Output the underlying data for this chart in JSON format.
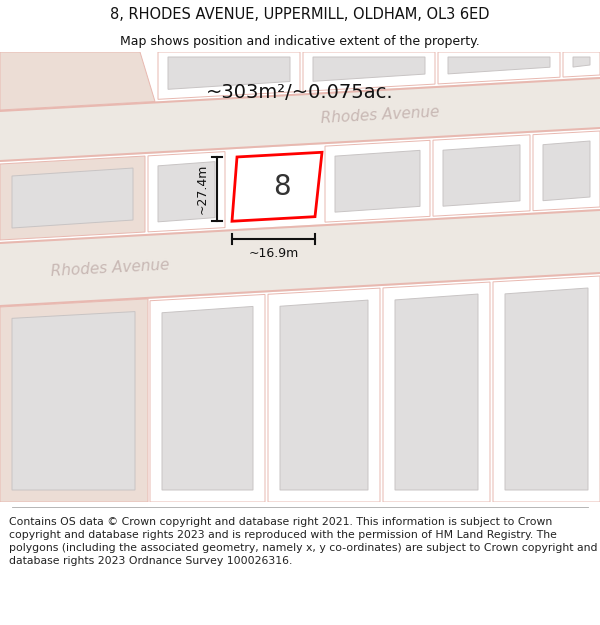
{
  "title_line1": "8, RHODES AVENUE, UPPERMILL, OLDHAM, OL3 6ED",
  "title_line2": "Map shows position and indicative extent of the property.",
  "footer_text": "Contains OS data © Crown copyright and database right 2021. This information is subject to Crown copyright and database rights 2023 and is reproduced with the permission of HM Land Registry. The polygons (including the associated geometry, namely x, y co-ordinates) are subject to Crown copyright and database rights 2023 Ordnance Survey 100026316.",
  "area_text": "~303m²/~0.075ac.",
  "label_text": "8",
  "dim_width": "~16.9m",
  "dim_height": "~27.4m",
  "rhodes_avenue_label_lower": "Rhodes Avenue",
  "rhodes_avenue_label_upper": "Rhodes Avenue",
  "map_bg": "#f5f0ec",
  "road_fill": "#ede8e2",
  "road_edge": "#e8b8b0",
  "beige_plot": "#ecddd5",
  "white_plot": "#ffffff",
  "grey_building": "#e0dede",
  "grey_edge": "#c8c4c4",
  "highlight_fill": "#ffffff",
  "highlight_stroke": "#ff0000",
  "title_fontsize": 10.5,
  "subtitle_fontsize": 9.0,
  "footer_fontsize": 7.8,
  "road_label_color": "#c8b8b4",
  "road_label_size": 11
}
